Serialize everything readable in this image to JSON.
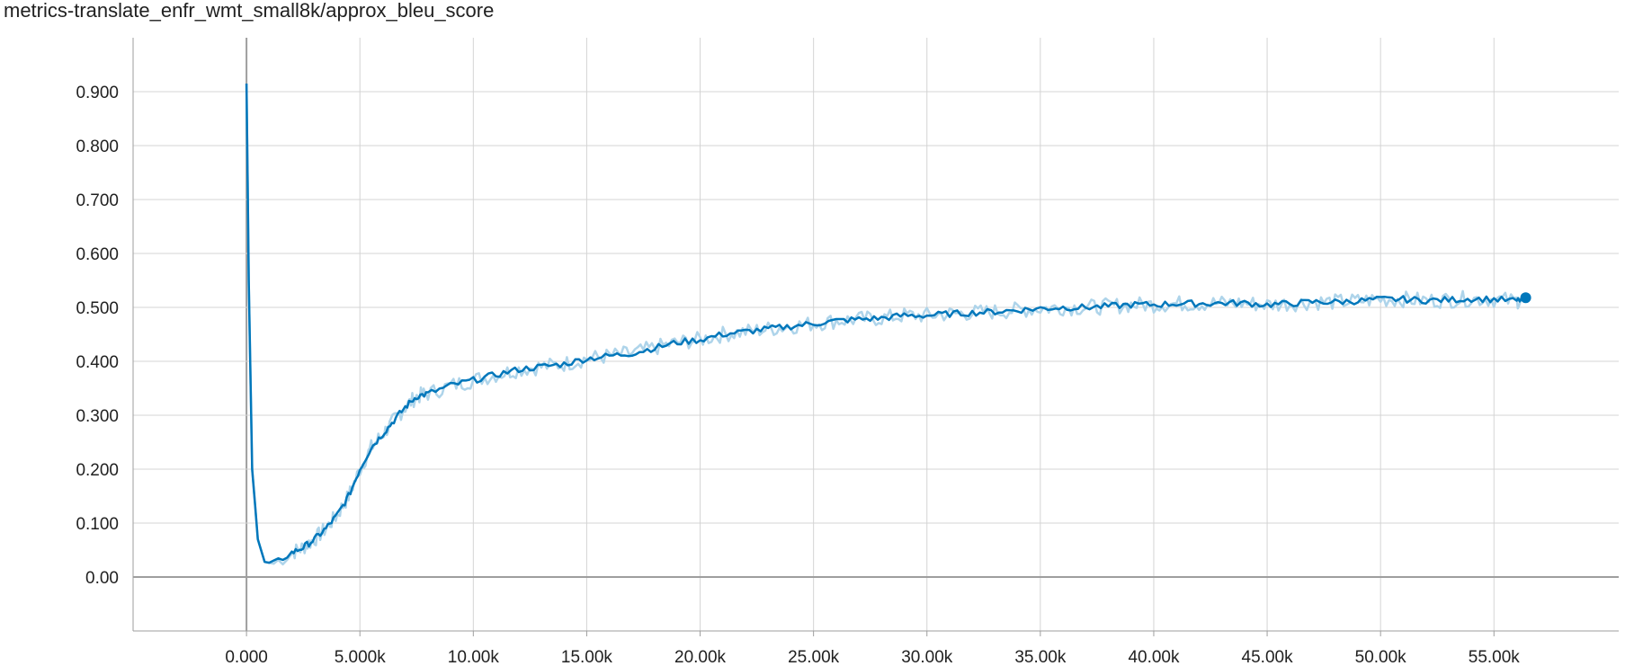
{
  "chart_data": {
    "type": "line",
    "title": "metrics-translate_enfr_wmt_small8k/approx_bleu_score",
    "xlabel": "",
    "ylabel": "",
    "xlim": [
      -5000,
      60500
    ],
    "ylim": [
      -0.1,
      1.0
    ],
    "grid": true,
    "x_ticks": [
      {
        "value": 0,
        "label": "0.000"
      },
      {
        "value": 5000,
        "label": "5.000k"
      },
      {
        "value": 10000,
        "label": "10.00k"
      },
      {
        "value": 15000,
        "label": "15.00k"
      },
      {
        "value": 20000,
        "label": "20.00k"
      },
      {
        "value": 25000,
        "label": "25.00k"
      },
      {
        "value": 30000,
        "label": "30.00k"
      },
      {
        "value": 35000,
        "label": "35.00k"
      },
      {
        "value": 40000,
        "label": "40.00k"
      },
      {
        "value": 45000,
        "label": "45.00k"
      },
      {
        "value": 50000,
        "label": "50.00k"
      },
      {
        "value": 55000,
        "label": "55.00k"
      }
    ],
    "y_ticks": [
      {
        "value": 0.0,
        "label": "0.00"
      },
      {
        "value": 0.1,
        "label": "0.100"
      },
      {
        "value": 0.2,
        "label": "0.200"
      },
      {
        "value": 0.3,
        "label": "0.300"
      },
      {
        "value": 0.4,
        "label": "0.400"
      },
      {
        "value": 0.5,
        "label": "0.500"
      },
      {
        "value": 0.6,
        "label": "0.600"
      },
      {
        "value": 0.7,
        "label": "0.700"
      },
      {
        "value": 0.8,
        "label": "0.800"
      },
      {
        "value": 0.9,
        "label": "0.900"
      }
    ],
    "series": [
      {
        "color": "#0077bb",
        "raw_color": "#aed4ea",
        "x": [
          0,
          100,
          250,
          500,
          800,
          1200,
          1600,
          2000,
          2500,
          3000,
          3500,
          4000,
          4500,
          5000,
          5500,
          6000,
          6500,
          7000,
          7500,
          8000,
          9000,
          10000,
          11000,
          12000,
          13000,
          14000,
          15000,
          16000,
          17000,
          18000,
          19000,
          20000,
          21000,
          22000,
          23000,
          24000,
          25000,
          26000,
          27000,
          28000,
          29000,
          30000,
          31000,
          32000,
          33000,
          34000,
          35000,
          36000,
          37000,
          38000,
          39000,
          40000,
          41000,
          42000,
          43000,
          44000,
          45000,
          46000,
          47000,
          48000,
          49000,
          50000,
          51000,
          52000,
          53000,
          54000,
          55000,
          56000,
          56400
        ],
        "y": [
          0.915,
          0.55,
          0.2,
          0.07,
          0.028,
          0.025,
          0.035,
          0.045,
          0.055,
          0.07,
          0.09,
          0.115,
          0.15,
          0.2,
          0.24,
          0.265,
          0.29,
          0.315,
          0.335,
          0.34,
          0.355,
          0.365,
          0.375,
          0.385,
          0.39,
          0.395,
          0.405,
          0.41,
          0.415,
          0.425,
          0.435,
          0.44,
          0.45,
          0.455,
          0.46,
          0.465,
          0.47,
          0.475,
          0.478,
          0.48,
          0.485,
          0.485,
          0.488,
          0.49,
          0.492,
          0.495,
          0.498,
          0.5,
          0.5,
          0.502,
          0.505,
          0.505,
          0.507,
          0.507,
          0.508,
          0.508,
          0.505,
          0.507,
          0.51,
          0.51,
          0.512,
          0.515,
          0.515,
          0.513,
          0.514,
          0.516,
          0.515,
          0.512,
          0.518
        ]
      }
    ]
  }
}
